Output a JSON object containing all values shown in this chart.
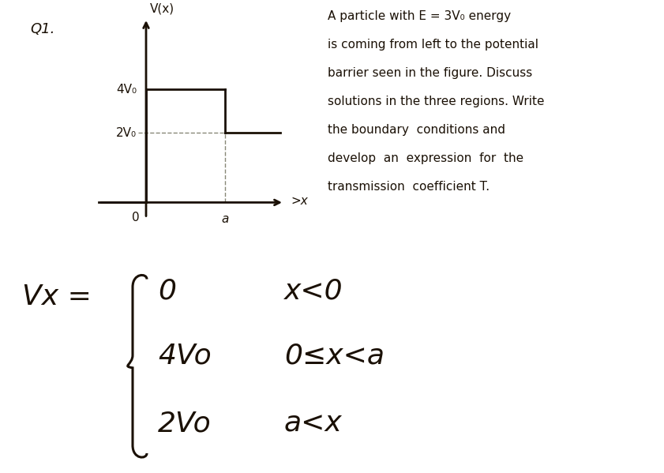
{
  "bg_top": "#ede0c8",
  "bg_bottom": "#ffffff",
  "q1_label": "Q1.",
  "graph_ylabel": "V(x)",
  "x_label": "x",
  "y_label_4v0": "4V₀",
  "y_label_2v0": "2V₀",
  "x_tick_a": "a",
  "origin_label": "0",
  "problem_lines": [
    "A particle with E = 3V₀ energy",
    "is coming from left to the potential",
    "barrier seen in the figure. Discuss",
    "solutions in the three regions. Write",
    "the boundary  conditions and",
    "develop  an  expression  for  the",
    "transmission  coefficient T."
  ],
  "piecewise_lhs": "Vx =",
  "piecewise_lines": [
    [
      "0",
      "x<0"
    ],
    [
      "4Vo",
      "0≤x<a"
    ],
    [
      "2Vo",
      "a<x"
    ]
  ],
  "line_color": "#1a1005",
  "text_color": "#1a1005"
}
